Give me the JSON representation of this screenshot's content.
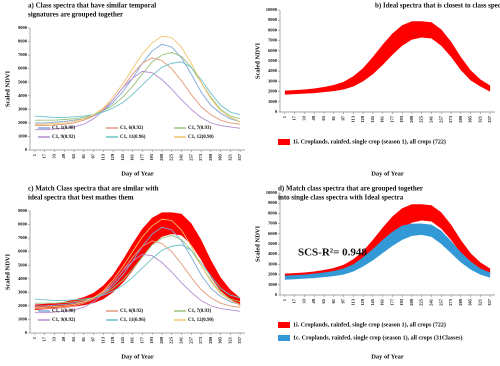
{
  "chart_data": [
    {
      "type": "line",
      "title": [
        "a) Class spectra that have similar temporal",
        "signatures are grouped together"
      ],
      "x_label": "Day of Year",
      "y_label": "Scaled NDVI",
      "categories": [
        "1",
        "17",
        "33",
        "49",
        "65",
        "81",
        "97",
        "113",
        "129",
        "145",
        "161",
        "177",
        "193",
        "209",
        "225",
        "241",
        "257",
        "273",
        "289",
        "305",
        "321",
        "337"
      ],
      "ylim": [
        0,
        9000
      ],
      "yticks": [
        0,
        1000,
        2000,
        3000,
        4000,
        5000,
        6000,
        7000,
        8000,
        9000
      ],
      "grid": false,
      "legend": "inside-bottom",
      "series": [
        {
          "name": "C1, 1(0.98)",
          "color": "#7fa7d9",
          "values": [
            2000,
            2000,
            2050,
            2100,
            2200,
            2300,
            2500,
            2900,
            3500,
            4300,
            5300,
            6400,
            7300,
            7800,
            7600,
            6800,
            5600,
            4300,
            3300,
            2700,
            2300,
            2100
          ]
        },
        {
          "name": "C1, 6(0.92)",
          "color": "#e59a7a",
          "values": [
            1800,
            1800,
            1850,
            1900,
            2000,
            2200,
            2500,
            3000,
            3700,
            4600,
            5600,
            6400,
            6800,
            6600,
            6000,
            5100,
            4100,
            3200,
            2600,
            2200,
            2000,
            1900
          ]
        },
        {
          "name": "C1, 7(0.93)",
          "color": "#9bc27a",
          "values": [
            2200,
            2200,
            2200,
            2250,
            2300,
            2400,
            2600,
            2900,
            3300,
            3900,
            4700,
            5600,
            6500,
            7000,
            7200,
            6900,
            6100,
            5000,
            3900,
            3000,
            2500,
            2300
          ]
        },
        {
          "name": "C1, 9(0.92)",
          "color": "#b48ccf",
          "values": [
            1500,
            1500,
            1550,
            1600,
            1700,
            1900,
            2300,
            2900,
            3700,
            4600,
            5300,
            5800,
            5700,
            5200,
            4500,
            3700,
            3000,
            2400,
            2000,
            1800,
            1700,
            1600
          ]
        },
        {
          "name": "C1, 11(0.96)",
          "color": "#6cc3c9",
          "values": [
            2500,
            2450,
            2400,
            2400,
            2450,
            2500,
            2600,
            2800,
            3100,
            3500,
            4100,
            4800,
            5500,
            6100,
            6400,
            6500,
            6100,
            5200,
            4200,
            3300,
            2800,
            2600
          ]
        },
        {
          "name": "C1, 12(0.90)",
          "color": "#f2c46b",
          "values": [
            1900,
            1900,
            1950,
            2000,
            2100,
            2300,
            2600,
            3100,
            3900,
            4900,
            6000,
            7100,
            7900,
            8400,
            8300,
            7600,
            6400,
            5000,
            3800,
            2900,
            2400,
            2100
          ]
        }
      ]
    },
    {
      "type": "area",
      "title": [
        "b) Ideal spectra  that is closest to class spectra"
      ],
      "x_label": "Day of Year",
      "y_label": "Scaled NDVI",
      "categories": [
        "1",
        "17",
        "33",
        "49",
        "65",
        "81",
        "97",
        "113",
        "129",
        "145",
        "161",
        "177",
        "193",
        "209",
        "225",
        "241",
        "257",
        "273",
        "289",
        "305",
        "321",
        "337"
      ],
      "ylim": [
        0,
        10000
      ],
      "yticks": [
        0,
        1000,
        2000,
        3000,
        4000,
        5000,
        6000,
        7000,
        8000,
        9000,
        10000
      ],
      "grid": false,
      "legend": "below",
      "series": [
        {
          "name": "1i. Croplands, rainfed, single crop (season 1), all crops (722)",
          "color": "#ff0000",
          "low": [
            1700,
            1750,
            1800,
            1850,
            1950,
            2050,
            2200,
            2500,
            3000,
            3700,
            4600,
            5600,
            6500,
            7100,
            7300,
            7200,
            6500,
            5400,
            4100,
            3100,
            2500,
            2000
          ],
          "high": [
            2100,
            2150,
            2200,
            2300,
            2450,
            2650,
            2950,
            3500,
            4300,
            5400,
            6600,
            7700,
            8500,
            8900,
            8900,
            8800,
            8100,
            6900,
            5400,
            4100,
            3200,
            2600
          ]
        }
      ]
    },
    {
      "type": "line",
      "title": [
        "c) Match Class spectra that are similar with",
        "ideal spectra that best mathes them"
      ],
      "x_label": "Day of Year",
      "y_label": "Scaled NDVI",
      "categories": [
        "1",
        "17",
        "33",
        "49",
        "65",
        "81",
        "97",
        "113",
        "129",
        "145",
        "161",
        "177",
        "193",
        "209",
        "225",
        "241",
        "257",
        "273",
        "289",
        "305",
        "321",
        "337"
      ],
      "ylim": [
        0,
        9000
      ],
      "yticks": [
        0,
        1000,
        2000,
        3000,
        4000,
        5000,
        6000,
        7000,
        8000,
        9000
      ],
      "grid": false,
      "legend": "inside-bottom",
      "series": [
        {
          "name": "1i. Croplands, rainfed, single crop (season 1), all crops (722)",
          "color": "#ff0000",
          "in_legend": false,
          "low": [
            1700,
            1750,
            1800,
            1850,
            1950,
            2050,
            2200,
            2500,
            3000,
            3700,
            4600,
            5600,
            6500,
            7100,
            7300,
            7200,
            6500,
            5400,
            4100,
            3100,
            2500,
            2000
          ],
          "high": [
            2100,
            2150,
            2200,
            2300,
            2450,
            2650,
            2950,
            3500,
            4300,
            5400,
            6600,
            7700,
            8500,
            8900,
            8900,
            8800,
            8100,
            6900,
            5400,
            4100,
            3200,
            2600
          ]
        },
        {
          "name": "C1, 1(0.98)",
          "color": "#7fa7d9",
          "values": [
            2000,
            2000,
            2050,
            2100,
            2200,
            2300,
            2500,
            2900,
            3500,
            4300,
            5300,
            6400,
            7300,
            7800,
            7600,
            6800,
            5600,
            4300,
            3300,
            2700,
            2300,
            2100
          ]
        },
        {
          "name": "C1, 6(0.92)",
          "color": "#e59a7a",
          "values": [
            1800,
            1800,
            1850,
            1900,
            2000,
            2200,
            2500,
            3000,
            3700,
            4600,
            5600,
            6400,
            6800,
            6600,
            6000,
            5100,
            4100,
            3200,
            2600,
            2200,
            2000,
            1900
          ]
        },
        {
          "name": "C1, 7(0.93)",
          "color": "#9bc27a",
          "values": [
            2200,
            2200,
            2200,
            2250,
            2300,
            2400,
            2600,
            2900,
            3300,
            3900,
            4700,
            5600,
            6500,
            7000,
            7200,
            6900,
            6100,
            5000,
            3900,
            3000,
            2500,
            2300
          ]
        },
        {
          "name": "C1, 9(0.92)",
          "color": "#b48ccf",
          "values": [
            1500,
            1500,
            1550,
            1600,
            1700,
            1900,
            2300,
            2900,
            3700,
            4600,
            5300,
            5800,
            5700,
            5200,
            4500,
            3700,
            3000,
            2400,
            2000,
            1800,
            1700,
            1600
          ]
        },
        {
          "name": "C1, 11(0.96)",
          "color": "#6cc3c9",
          "values": [
            2500,
            2450,
            2400,
            2400,
            2450,
            2500,
            2600,
            2800,
            3100,
            3500,
            4100,
            4800,
            5500,
            6100,
            6400,
            6500,
            6100,
            5200,
            4200,
            3300,
            2800,
            2600
          ]
        },
        {
          "name": "C1, 12(0.90)",
          "color": "#f2c46b",
          "values": [
            1900,
            1900,
            1950,
            2000,
            2100,
            2300,
            2600,
            3100,
            3900,
            4900,
            6000,
            7100,
            7900,
            8400,
            8300,
            7600,
            6400,
            5000,
            3800,
            2900,
            2400,
            2100
          ]
        }
      ]
    },
    {
      "type": "area",
      "title": [
        "d) Match class spectra that are grouped together",
        "into single class spectra with Ideal spectra"
      ],
      "annotation": "SCS-R²= 0.948",
      "x_label": "Day of Year",
      "y_label": "Scaled NDVI",
      "categories": [
        "1",
        "17",
        "33",
        "49",
        "65",
        "81",
        "97",
        "113",
        "129",
        "145",
        "161",
        "177",
        "193",
        "209",
        "225",
        "241",
        "257",
        "273",
        "289",
        "305",
        "321",
        "337"
      ],
      "ylim": [
        0,
        10000
      ],
      "yticks": [
        0,
        1000,
        2000,
        3000,
        4000,
        5000,
        6000,
        7000,
        8000,
        9000,
        10000
      ],
      "grid": false,
      "legend": "below",
      "series": [
        {
          "name": "1i. Croplands, rainfed, single crop (season 1), all crops (722)",
          "color": "#ff0000",
          "low": [
            1700,
            1750,
            1800,
            1850,
            1950,
            2050,
            2200,
            2500,
            3000,
            3700,
            4600,
            5600,
            6500,
            7100,
            7300,
            7200,
            6500,
            5400,
            4100,
            3100,
            2500,
            2000
          ],
          "high": [
            2100,
            2150,
            2200,
            2300,
            2450,
            2650,
            2950,
            3500,
            4300,
            5400,
            6600,
            7700,
            8500,
            8900,
            8900,
            8800,
            8100,
            6900,
            5400,
            4100,
            3200,
            2600
          ]
        },
        {
          "name": "1c. Croplands, rainfed, single crop (season 1), all crops (31Classes)",
          "color": "#3399d6",
          "low": [
            1500,
            1550,
            1600,
            1650,
            1750,
            1850,
            2000,
            2300,
            2800,
            3400,
            4100,
            4800,
            5400,
            5800,
            5900,
            5700,
            5000,
            4100,
            3200,
            2500,
            2000,
            1700
          ],
          "high": [
            1900,
            1950,
            2000,
            2100,
            2200,
            2350,
            2600,
            3000,
            3700,
            4500,
            5400,
            6200,
            6800,
            7000,
            7000,
            6900,
            6300,
            5300,
            4200,
            3300,
            2600,
            2200
          ]
        }
      ]
    }
  ]
}
